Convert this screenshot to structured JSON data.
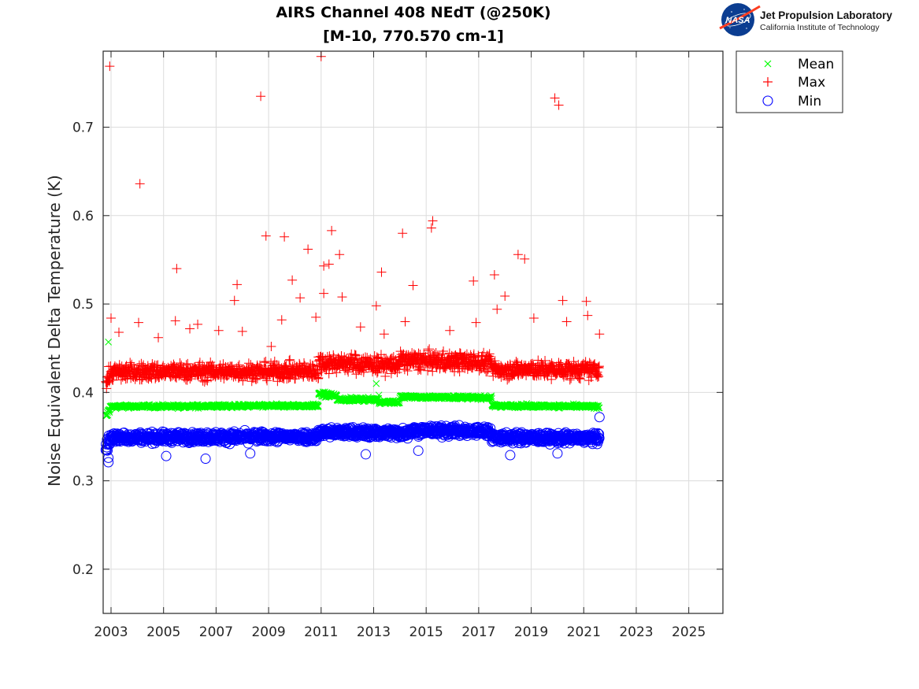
{
  "logo": {
    "badge": "NASA",
    "org_name": "Jet Propulsion Laboratory",
    "org_sub": "California Institute of Technology"
  },
  "chart_data": {
    "type": "scatter",
    "title": [
      "AIRS Channel 408 NEdT (@250K)",
      "[M-10, 770.570 cm-1]"
    ],
    "xlabel": "",
    "ylabel": "Noise Equivalent Delta Temperature (K)",
    "xlim": [
      2002.7,
      2026.3
    ],
    "ylim": [
      0.15,
      0.786
    ],
    "xticks": [
      2003,
      2005,
      2007,
      2009,
      2011,
      2013,
      2015,
      2017,
      2019,
      2021,
      2023,
      2025
    ],
    "xtick_labels": [
      "2003",
      "2005",
      "2007",
      "2009",
      "2011",
      "2013",
      "2015",
      "2017",
      "2019",
      "2021",
      "2023",
      "2025"
    ],
    "yticks": [
      0.2,
      0.3,
      0.4,
      0.5,
      0.6,
      0.7
    ],
    "ytick_labels": [
      "0.2",
      "0.3",
      "0.4",
      "0.5",
      "0.6",
      "0.7"
    ],
    "grid": true,
    "legend_position": "outside-top-right",
    "data_range": [
      2002.8,
      2021.6
    ],
    "series": [
      {
        "name": "Mean",
        "marker": "x",
        "color": "#00ff00",
        "baseline_segments": [
          {
            "x": [
              2002.8,
              2003.0
            ],
            "y": [
              0.372,
              0.384
            ],
            "spread": 0.004
          },
          {
            "x": [
              2003.0,
              2010.9
            ],
            "y": [
              0.384,
              0.385
            ],
            "spread": 0.002
          },
          {
            "x": [
              2010.9,
              2011.6
            ],
            "y": [
              0.398,
              0.396
            ],
            "spread": 0.003
          },
          {
            "x": [
              2011.6,
              2013.2
            ],
            "y": [
              0.392,
              0.392
            ],
            "spread": 0.002
          },
          {
            "x": [
              2013.2,
              2014.0
            ],
            "y": [
              0.389,
              0.389
            ],
            "spread": 0.002
          },
          {
            "x": [
              2014.0,
              2017.5
            ],
            "y": [
              0.395,
              0.394
            ],
            "spread": 0.002
          },
          {
            "x": [
              2017.5,
              2021.6
            ],
            "y": [
              0.385,
              0.384
            ],
            "spread": 0.002
          }
        ],
        "outliers": [
          {
            "x": 2002.9,
            "y": 0.457
          },
          {
            "x": 2013.1,
            "y": 0.41
          },
          {
            "x": 2013.2,
            "y": 0.397
          }
        ]
      },
      {
        "name": "Max",
        "marker": "+",
        "color": "#ff0000",
        "baseline_segments": [
          {
            "x": [
              2002.8,
              2003.0
            ],
            "y": [
              0.412,
              0.422
            ],
            "spread": 0.012
          },
          {
            "x": [
              2003.0,
              2010.9
            ],
            "y": [
              0.423,
              0.424
            ],
            "spread": 0.01
          },
          {
            "x": [
              2010.9,
              2014.0
            ],
            "y": [
              0.434,
              0.431
            ],
            "spread": 0.011
          },
          {
            "x": [
              2014.0,
              2017.5
            ],
            "y": [
              0.436,
              0.434
            ],
            "spread": 0.011
          },
          {
            "x": [
              2017.5,
              2021.6
            ],
            "y": [
              0.426,
              0.425
            ],
            "spread": 0.01
          }
        ],
        "outliers": [
          {
            "x": 2002.95,
            "y": 0.769
          },
          {
            "x": 2003.0,
            "y": 0.484
          },
          {
            "x": 2003.3,
            "y": 0.468
          },
          {
            "x": 2004.1,
            "y": 0.636
          },
          {
            "x": 2004.05,
            "y": 0.479
          },
          {
            "x": 2004.8,
            "y": 0.462
          },
          {
            "x": 2005.5,
            "y": 0.54
          },
          {
            "x": 2005.45,
            "y": 0.481
          },
          {
            "x": 2006.0,
            "y": 0.472
          },
          {
            "x": 2006.3,
            "y": 0.477
          },
          {
            "x": 2007.1,
            "y": 0.47
          },
          {
            "x": 2007.7,
            "y": 0.504
          },
          {
            "x": 2007.8,
            "y": 0.522
          },
          {
            "x": 2008.0,
            "y": 0.469
          },
          {
            "x": 2008.7,
            "y": 0.735
          },
          {
            "x": 2008.9,
            "y": 0.577
          },
          {
            "x": 2009.1,
            "y": 0.452
          },
          {
            "x": 2009.6,
            "y": 0.576
          },
          {
            "x": 2009.5,
            "y": 0.482
          },
          {
            "x": 2009.9,
            "y": 0.527
          },
          {
            "x": 2010.2,
            "y": 0.507
          },
          {
            "x": 2010.5,
            "y": 0.562
          },
          {
            "x": 2010.8,
            "y": 0.485
          },
          {
            "x": 2011.0,
            "y": 0.78
          },
          {
            "x": 2011.1,
            "y": 0.543
          },
          {
            "x": 2011.1,
            "y": 0.512
          },
          {
            "x": 2011.3,
            "y": 0.545
          },
          {
            "x": 2011.4,
            "y": 0.583
          },
          {
            "x": 2011.7,
            "y": 0.556
          },
          {
            "x": 2011.8,
            "y": 0.508
          },
          {
            "x": 2012.5,
            "y": 0.474
          },
          {
            "x": 2013.1,
            "y": 0.498
          },
          {
            "x": 2013.3,
            "y": 0.536
          },
          {
            "x": 2013.4,
            "y": 0.466
          },
          {
            "x": 2014.1,
            "y": 0.58
          },
          {
            "x": 2014.2,
            "y": 0.48
          },
          {
            "x": 2014.5,
            "y": 0.521
          },
          {
            "x": 2015.2,
            "y": 0.586
          },
          {
            "x": 2015.25,
            "y": 0.594
          },
          {
            "x": 2015.9,
            "y": 0.47
          },
          {
            "x": 2016.8,
            "y": 0.526
          },
          {
            "x": 2016.9,
            "y": 0.479
          },
          {
            "x": 2017.6,
            "y": 0.533
          },
          {
            "x": 2017.7,
            "y": 0.494
          },
          {
            "x": 2018.0,
            "y": 0.509
          },
          {
            "x": 2018.5,
            "y": 0.556
          },
          {
            "x": 2018.75,
            "y": 0.551
          },
          {
            "x": 2019.1,
            "y": 0.484
          },
          {
            "x": 2019.9,
            "y": 0.733
          },
          {
            "x": 2020.05,
            "y": 0.725
          },
          {
            "x": 2020.2,
            "y": 0.504
          },
          {
            "x": 2020.35,
            "y": 0.48
          },
          {
            "x": 2021.1,
            "y": 0.503
          },
          {
            "x": 2021.15,
            "y": 0.487
          },
          {
            "x": 2021.6,
            "y": 0.466
          }
        ]
      },
      {
        "name": "Min",
        "marker": "o",
        "color": "#0000ff",
        "baseline_segments": [
          {
            "x": [
              2002.8,
              2003.0
            ],
            "y": [
              0.338,
              0.348
            ],
            "spread": 0.008
          },
          {
            "x": [
              2003.0,
              2010.9
            ],
            "y": [
              0.349,
              0.35
            ],
            "spread": 0.006
          },
          {
            "x": [
              2010.9,
              2014.3
            ],
            "y": [
              0.355,
              0.354
            ],
            "spread": 0.006
          },
          {
            "x": [
              2014.3,
              2017.5
            ],
            "y": [
              0.357,
              0.356
            ],
            "spread": 0.006
          },
          {
            "x": [
              2017.5,
              2021.6
            ],
            "y": [
              0.349,
              0.348
            ],
            "spread": 0.006
          }
        ],
        "outliers": [
          {
            "x": 2002.9,
            "y": 0.321
          },
          {
            "x": 2002.9,
            "y": 0.326
          },
          {
            "x": 2005.1,
            "y": 0.328
          },
          {
            "x": 2006.6,
            "y": 0.325
          },
          {
            "x": 2008.3,
            "y": 0.331
          },
          {
            "x": 2012.7,
            "y": 0.33
          },
          {
            "x": 2014.7,
            "y": 0.334
          },
          {
            "x": 2018.2,
            "y": 0.329
          },
          {
            "x": 2020.0,
            "y": 0.331
          },
          {
            "x": 2021.6,
            "y": 0.372
          }
        ]
      }
    ]
  }
}
